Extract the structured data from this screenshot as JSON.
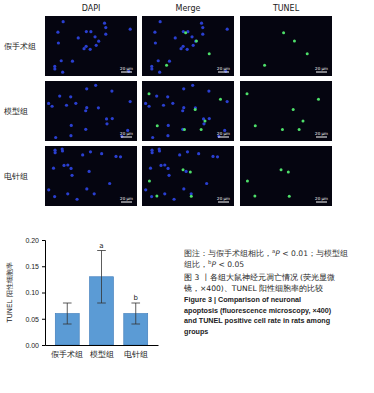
{
  "panels": {
    "columns": [
      "DAPI",
      "Merge",
      "TUNEL"
    ],
    "rows": [
      "假手术组",
      "模型组",
      "电针组"
    ],
    "scale_bar": "20 μm"
  },
  "chart_data": {
    "type": "bar",
    "y_label": "TUNEL 阳性细胞率",
    "categories": [
      "假手术组",
      "模型组",
      "电针组"
    ],
    "values": [
      0.06,
      0.13,
      0.06
    ],
    "errors": [
      0.02,
      0.05,
      0.02
    ],
    "significance": [
      null,
      "a",
      "b"
    ],
    "color": "#5b9bd5",
    "ylim": [
      0,
      0.2
    ],
    "yticks": [
      {
        "value": 0,
        "label": "0.00"
      },
      {
        "value": 0.05,
        "label": "0.05"
      },
      {
        "value": 0.1,
        "label": "0.10"
      },
      {
        "value": 0.15,
        "label": "0.15"
      },
      {
        "value": 0.2,
        "label": "0.20"
      }
    ],
    "grid": false
  },
  "caption": {
    "note": [
      [
        {
          "text": "图注：与假手术组相比，"
        },
        {
          "text": "a",
          "style": "sup"
        },
        {
          "text": "P",
          "style": "italic"
        },
        {
          "text": " < 0.01；与模型组"
        }
      ],
      [
        {
          "text": "组比，"
        },
        {
          "text": "b",
          "style": "sup"
        },
        {
          "text": "P",
          "style": "italic"
        },
        {
          "text": " < 0.05"
        }
      ]
    ],
    "title_zh": [
      "图 3 丨各组大鼠神经元凋亡情况 (荧光显微",
      "镜，×400)、TUNEL 阳性细胞率的比较"
    ],
    "title_en": [
      "Figure 3  |  Comparison of neuronal",
      "apoptosis (fluorescence microscopy, ×400)",
      "and TUNEL positive cell rate in rats among",
      "groups"
    ]
  }
}
